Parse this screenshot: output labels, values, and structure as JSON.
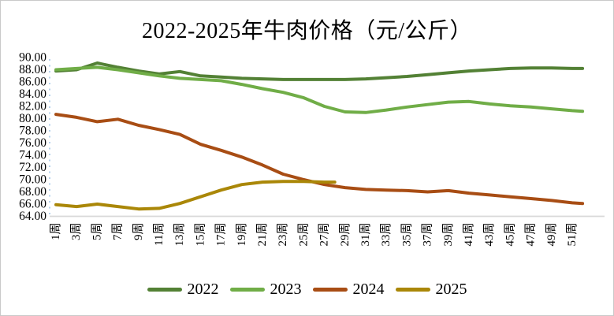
{
  "window": {
    "background": "#ffffff",
    "border_color": "#c9c9c9"
  },
  "chart_data": {
    "type": "line",
    "title": "2022-2025年牛肉价格（元/公斤）",
    "xlabel": "",
    "ylabel": "",
    "grid": false,
    "legend_position": "bottom",
    "y_min": 64,
    "y_max": 90,
    "y_step": 2,
    "y_tick_labels": [
      "90.00",
      "88.00",
      "86.00",
      "84.00",
      "82.00",
      "80.00",
      "78.00",
      "76.00",
      "74.00",
      "72.00",
      "70.00",
      "68.00",
      "66.00",
      "64.00"
    ],
    "x_min": 1,
    "x_max": 52,
    "x_tick_weeks": [
      1,
      3,
      5,
      7,
      9,
      11,
      13,
      15,
      17,
      19,
      21,
      23,
      25,
      27,
      29,
      31,
      33,
      35,
      37,
      39,
      41,
      43,
      45,
      47,
      49,
      51
    ],
    "x_tick_labels": [
      "1周",
      "3周",
      "5周",
      "7周",
      "9周",
      "11周",
      "13周",
      "15周",
      "17周",
      "19周",
      "21周",
      "23周",
      "25周",
      "27周",
      "29周",
      "31周",
      "33周",
      "35周",
      "37周",
      "39周",
      "41周",
      "43周",
      "45周",
      "47周",
      "49周",
      "51周"
    ],
    "axis_line_color": "#d9d9d9",
    "left_axis_dotted_color": "#9dc3e6",
    "series": [
      {
        "name": "2022",
        "color": "#538135",
        "weeks": [
          1,
          3,
          5,
          7,
          9,
          11,
          13,
          15,
          17,
          19,
          21,
          23,
          25,
          27,
          29,
          31,
          33,
          35,
          37,
          39,
          41,
          43,
          45,
          47,
          49,
          51,
          52
        ],
        "values": [
          87.8,
          88.0,
          89.1,
          88.4,
          87.8,
          87.3,
          87.7,
          87.0,
          86.8,
          86.6,
          86.5,
          86.4,
          86.4,
          86.4,
          86.4,
          86.5,
          86.7,
          86.9,
          87.2,
          87.5,
          87.8,
          88.0,
          88.2,
          88.3,
          88.3,
          88.2,
          88.2
        ]
      },
      {
        "name": "2023",
        "color": "#70ad47",
        "weeks": [
          1,
          3,
          5,
          7,
          9,
          11,
          13,
          15,
          17,
          19,
          21,
          23,
          25,
          27,
          29,
          31,
          33,
          35,
          37,
          39,
          41,
          43,
          45,
          47,
          49,
          51,
          52
        ],
        "values": [
          88.0,
          88.2,
          88.4,
          88.0,
          87.5,
          87.0,
          86.6,
          86.4,
          86.2,
          85.6,
          84.9,
          84.3,
          83.4,
          82.0,
          81.1,
          81.0,
          81.4,
          81.9,
          82.3,
          82.7,
          82.8,
          82.4,
          82.1,
          81.9,
          81.6,
          81.3,
          81.2
        ]
      },
      {
        "name": "2024",
        "color": "#a84d14",
        "weeks": [
          1,
          3,
          5,
          7,
          9,
          11,
          13,
          15,
          17,
          19,
          21,
          23,
          25,
          27,
          29,
          31,
          33,
          35,
          37,
          39,
          41,
          43,
          45,
          47,
          49,
          51,
          52
        ],
        "values": [
          80.7,
          80.2,
          79.5,
          79.9,
          78.9,
          78.2,
          77.4,
          75.8,
          74.8,
          73.7,
          72.4,
          70.9,
          70.0,
          69.2,
          68.7,
          68.4,
          68.3,
          68.2,
          68.0,
          68.2,
          67.8,
          67.5,
          67.2,
          66.9,
          66.6,
          66.2,
          66.1
        ]
      },
      {
        "name": "2025",
        "color": "#aa8708",
        "weeks": [
          1,
          3,
          5,
          7,
          9,
          11,
          13,
          15,
          17,
          19,
          21,
          23,
          25,
          27,
          28
        ],
        "values": [
          65.9,
          65.6,
          66.0,
          65.6,
          65.2,
          65.3,
          66.1,
          67.2,
          68.3,
          69.2,
          69.6,
          69.7,
          69.7,
          69.6,
          69.6
        ]
      }
    ]
  }
}
